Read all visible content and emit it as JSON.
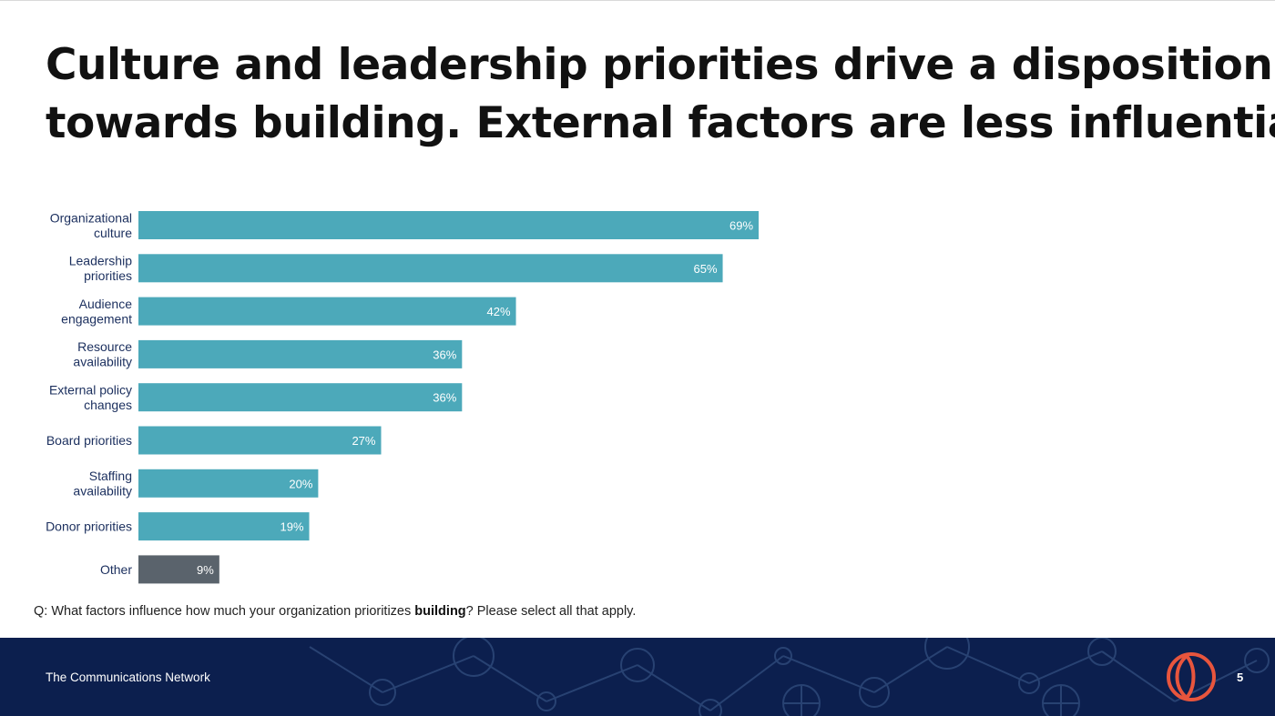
{
  "title": {
    "line1": "Culture and leadership priorities drive a disposition",
    "line2": "towards building. External factors are less influential."
  },
  "chart_data": {
    "type": "bar",
    "orientation": "horizontal",
    "categories": [
      [
        "Organizational",
        "culture"
      ],
      [
        "Leadership",
        "priorities"
      ],
      [
        "Audience",
        "engagement"
      ],
      [
        "Resource",
        "availability"
      ],
      [
        "External policy",
        "changes"
      ],
      [
        "Board priorities"
      ],
      [
        "Staffing",
        "availability"
      ],
      [
        "Donor priorities"
      ],
      [
        "Other"
      ]
    ],
    "values": [
      69,
      65,
      42,
      36,
      36,
      27,
      20,
      19,
      9
    ],
    "value_labels": [
      "69%",
      "65%",
      "42%",
      "36%",
      "36%",
      "27%",
      "20%",
      "19%",
      "9%"
    ],
    "colors": [
      "#4ca9ba",
      "#4ca9ba",
      "#4ca9ba",
      "#4ca9ba",
      "#4ca9ba",
      "#4ca9ba",
      "#4ca9ba",
      "#4ca9ba",
      "#5a636c"
    ],
    "xlim": [
      0,
      100
    ],
    "unit": "%"
  },
  "question": {
    "prefix": "Q: What factors influence how much your organization prioritizes ",
    "bold": "building",
    "suffix": "? Please select all that apply."
  },
  "footer": {
    "organization": "The Communications Network",
    "page_number": "5",
    "logo_icon": "network-logo-icon",
    "accent": "#e8553d",
    "background": "#0c1f4e"
  }
}
